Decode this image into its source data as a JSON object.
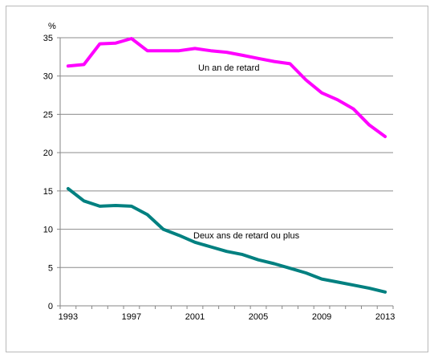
{
  "chart_data": {
    "type": "line",
    "ylabel": "%",
    "ylim": [
      0,
      35
    ],
    "yticks": [
      "0",
      "5",
      "10",
      "15",
      "20",
      "25",
      "30",
      "35"
    ],
    "xticks": [
      "1993",
      "1997",
      "2001",
      "2005",
      "2009",
      "2013"
    ],
    "x": [
      1993,
      1994,
      1995,
      1996,
      1997,
      1998,
      1999,
      2000,
      2001,
      2002,
      2003,
      2004,
      2005,
      2006,
      2007,
      2008,
      2009,
      2010,
      2011,
      2012,
      2013
    ],
    "series": [
      {
        "name": "Un an de retard",
        "color": "#ff00ff",
        "values": [
          31.3,
          31.5,
          34.2,
          34.3,
          34.9,
          33.3,
          33.3,
          33.3,
          33.6,
          33.3,
          33.1,
          32.7,
          32.3,
          31.9,
          31.6,
          29.5,
          27.8,
          26.9,
          25.7,
          23.6,
          22.1
        ]
      },
      {
        "name": "Deux ans de retard ou plus",
        "color": "#008080",
        "values": [
          15.3,
          13.7,
          13.0,
          13.1,
          13.0,
          11.9,
          10.0,
          9.2,
          8.3,
          7.7,
          7.1,
          6.7,
          6.0,
          5.5,
          4.9,
          4.3,
          3.5,
          3.1,
          2.7,
          2.3,
          1.8
        ]
      }
    ],
    "grid": true
  }
}
